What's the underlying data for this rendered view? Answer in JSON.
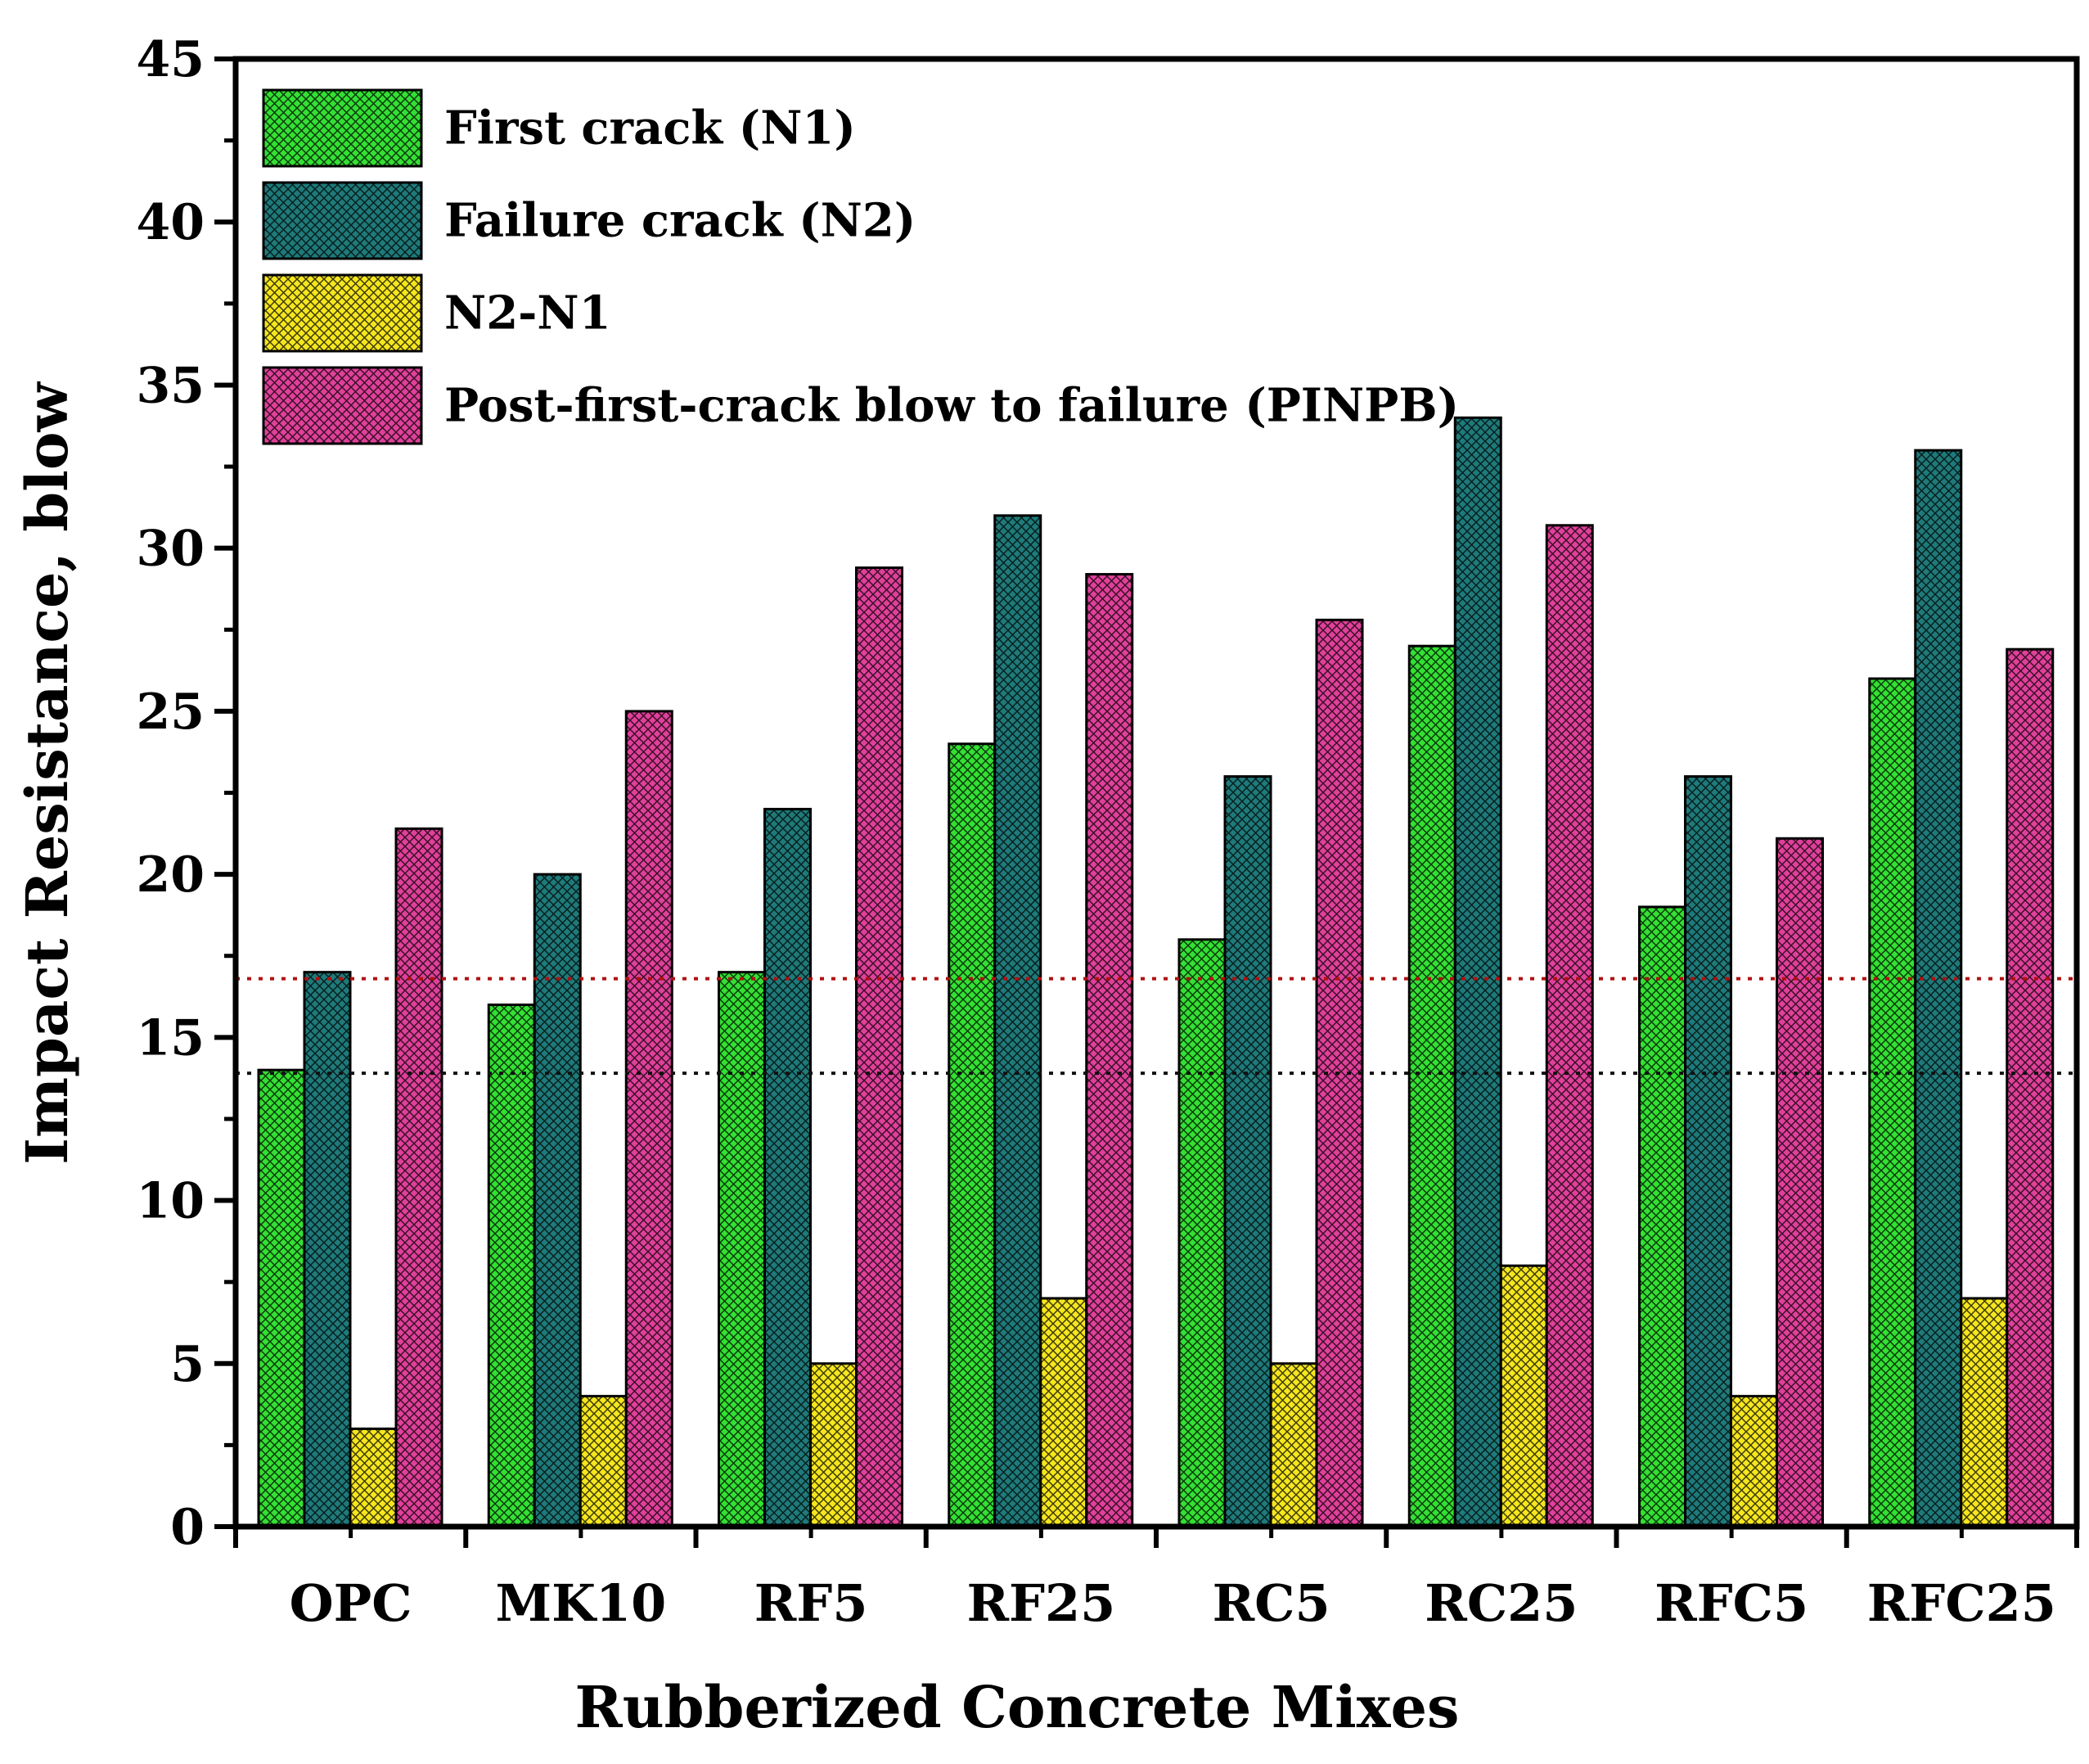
{
  "chart_data": {
    "type": "bar",
    "title": "",
    "xlabel": "Rubberized Concrete Mixes",
    "ylabel": "Impact Resistance, blow",
    "ylim": [
      0,
      45
    ],
    "yticks": [
      0,
      5,
      10,
      15,
      20,
      25,
      30,
      35,
      40,
      45
    ],
    "grid": false,
    "legend_position": "top-left",
    "categories": [
      "OPC",
      "MK10",
      "RF5",
      "RF25",
      "RC5",
      "RC25",
      "RFC5",
      "RFC25"
    ],
    "series": [
      {
        "name": "First crack (N1)",
        "color": "#33e033",
        "values": [
          14,
          16,
          17,
          24,
          18,
          27,
          19,
          26
        ]
      },
      {
        "name": "Failure crack (N2)",
        "color": "#1f7a7a",
        "values": [
          17,
          20,
          22,
          31,
          23,
          34,
          23,
          33
        ]
      },
      {
        "name": "N2-N1",
        "color": "#f5e61e",
        "values": [
          3,
          4,
          5,
          7,
          5,
          8,
          4,
          7
        ]
      },
      {
        "name": "Post-first-crack blow to failure (PINPB)",
        "color": "#e0409a",
        "values": [
          21.4,
          25,
          29.4,
          29.2,
          27.8,
          30.7,
          21.1,
          26.9
        ]
      }
    ],
    "reference_lines": [
      {
        "value": 16.8,
        "color": "#b01010",
        "style": "dotted"
      },
      {
        "value": 13.9,
        "color": "#111111",
        "style": "dotted"
      }
    ]
  }
}
